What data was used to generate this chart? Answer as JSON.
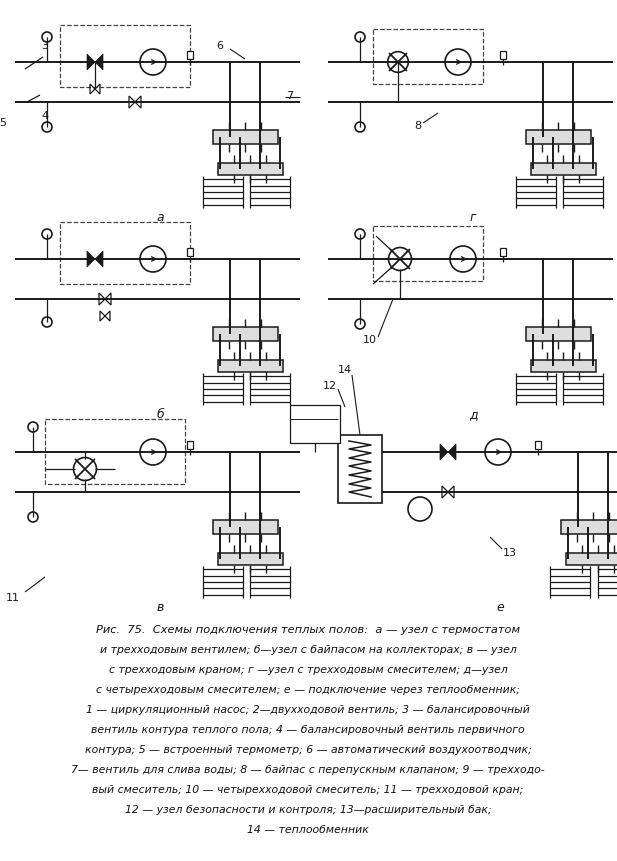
{
  "bg_color": "#ffffff",
  "fig_width": 6.17,
  "fig_height": 8.62,
  "dpi": 100,
  "caption_lines": [
    "Рис.  75.  Схемы подключения теплых полов:  а — узел с термостатом",
    "и трехходовым вентилем; б—узел с байпасом на коллекторах; в — узел",
    "с трехходовым краном; г —узел с трехходовым смесителем; д—узел",
    "с четырехходовым смесителем; е — подключение через теплообменник;",
    "1 — циркуляционный насос; 2—двухходовой вентиль; 3 — балансировочный",
    "вентиль контура теплого пола; 4 — балансировочный вентиль первичного",
    "контура; 5 — встроенный термометр; 6 — автоматический воздухоотводчик;",
    "7— вентиль для слива воды; 8 — байпас с перепускным клапаном; 9 — трехходо-",
    "вый смеситель; 10 — четырехходовой смеситель; 11 — трехходовой кран;",
    "12 — узел безопасности и контроля; 13—расширительный бак;",
    "14 — теплообменник"
  ]
}
